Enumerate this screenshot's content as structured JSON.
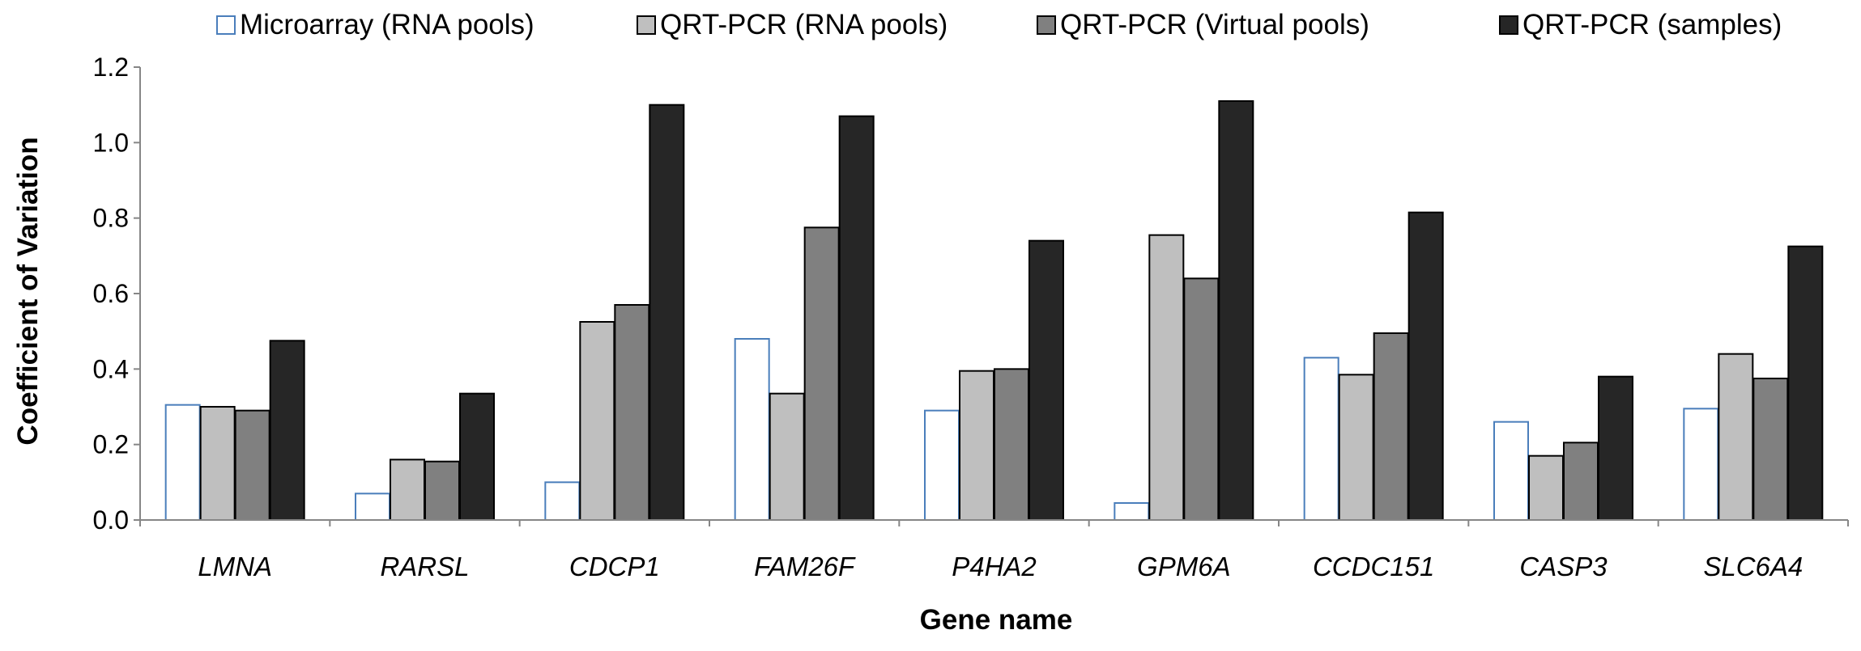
{
  "chart_data": {
    "type": "bar",
    "xlabel": "Gene name",
    "ylabel": "Coefficient of Variation",
    "ylim": [
      0,
      1.2
    ],
    "yticks": [
      "0.0",
      "0.2",
      "0.4",
      "0.6",
      "0.8",
      "1.0",
      "1.2"
    ],
    "grid": false,
    "legend_position": "top",
    "categories": [
      "LMNA",
      "RARSL",
      "CDCP1",
      "FAM26F",
      "P4HA2",
      "GPM6A",
      "CCDC151",
      "CASP3",
      "SLC6A4"
    ],
    "series": [
      {
        "name": "Microarray (RNA pools)",
        "fill": "#ffffff",
        "stroke": "#4a7ebb",
        "values": [
          0.305,
          0.07,
          0.1,
          0.48,
          0.29,
          0.045,
          0.43,
          0.26,
          0.295
        ]
      },
      {
        "name": "QRT-PCR (RNA pools)",
        "fill": "#bfbfbf",
        "stroke": "#000000",
        "values": [
          0.3,
          0.16,
          0.525,
          0.335,
          0.395,
          0.755,
          0.385,
          0.17,
          0.44
        ]
      },
      {
        "name": "QRT-PCR (Virtual pools)",
        "fill": "#808080",
        "stroke": "#000000",
        "values": [
          0.29,
          0.155,
          0.57,
          0.775,
          0.4,
          0.64,
          0.495,
          0.205,
          0.375
        ]
      },
      {
        "name": "QRT-PCR (samples)",
        "fill": "#262626",
        "stroke": "#000000",
        "values": [
          0.475,
          0.335,
          1.1,
          1.07,
          0.74,
          1.11,
          0.815,
          0.38,
          0.725
        ]
      }
    ]
  }
}
